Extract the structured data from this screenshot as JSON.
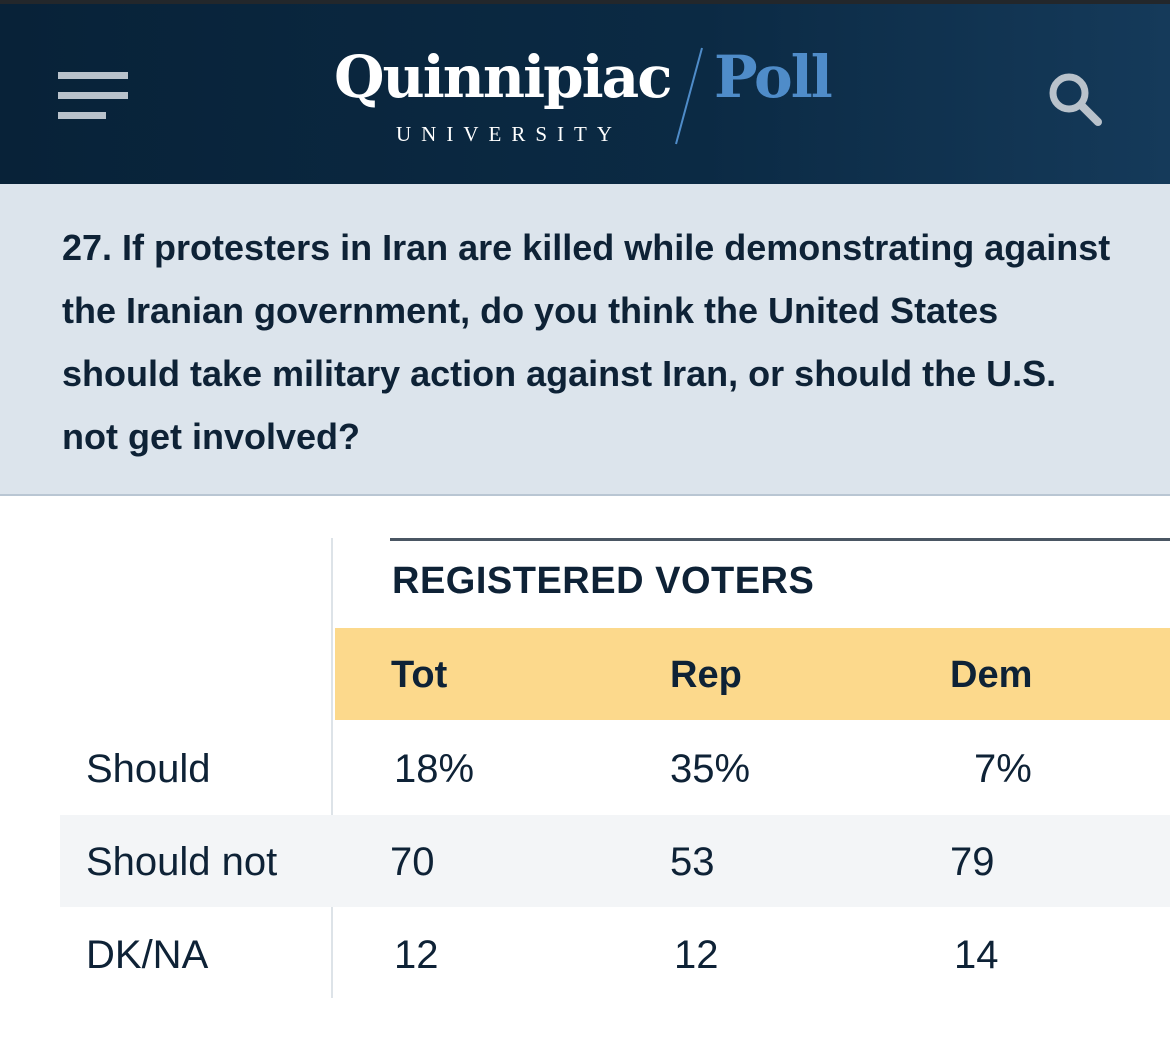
{
  "header": {
    "logo_name": "Quinnipiac",
    "logo_sub": "UNIVERSITY",
    "logo_poll": "Poll",
    "menu_icon": "hamburger-menu-icon",
    "search_icon": "search-icon"
  },
  "question": {
    "text": "27. If protesters in Iran are killed while demonstrating against the Iranian government, do you think the United States should take military action against Iran, or should the U.S. not get involved?"
  },
  "table": {
    "group_label": "REGISTERED VOTERS",
    "columns": [
      "Tot",
      "Rep",
      "Dem"
    ],
    "rows": [
      {
        "label": "Should",
        "values": [
          "18%",
          "35%",
          "7%"
        ]
      },
      {
        "label": "Should not",
        "values": [
          "70",
          "53",
          "79"
        ]
      },
      {
        "label": "DK/NA",
        "values": [
          "12",
          "12",
          "14"
        ]
      }
    ]
  },
  "colors": {
    "header_bg": "#082238",
    "poll_blue": "#4f8cc9",
    "question_bg": "#dce4ec",
    "column_header_bg": "#fcd98c",
    "text": "#0e2236"
  }
}
